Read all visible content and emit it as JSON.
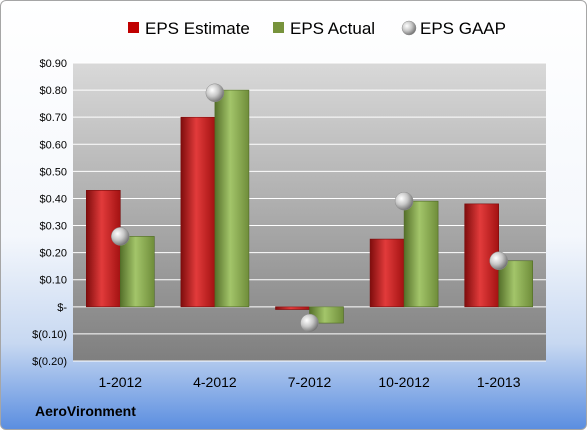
{
  "company": "AeroVironment",
  "colors": {
    "estimate": "#c00000",
    "actual": "#77933c",
    "gaap": "#a6a6a6"
  },
  "chart_data": {
    "type": "bar",
    "categories": [
      "1-2012",
      "4-2012",
      "7-2012",
      "10-2012",
      "1-2013"
    ],
    "series": [
      {
        "name": "EPS Estimate",
        "values": [
          0.43,
          0.7,
          -0.01,
          0.25,
          0.38
        ]
      },
      {
        "name": "EPS Actual",
        "values": [
          0.26,
          0.8,
          -0.06,
          0.39,
          0.17
        ]
      },
      {
        "name": "EPS GAAP",
        "values": [
          0.26,
          0.79,
          -0.06,
          0.39,
          0.17
        ],
        "marker": "sphere"
      }
    ],
    "ylim": [
      -0.2,
      0.9
    ],
    "yticks": [
      -0.2,
      -0.1,
      0,
      0.1,
      0.2,
      0.3,
      0.4,
      0.5,
      0.6,
      0.7,
      0.8,
      0.9
    ],
    "ytick_labels": [
      "$(0.20)",
      "$(0.10)",
      "$-",
      "$0.10",
      "$0.20",
      "$0.30",
      "$0.40",
      "$0.50",
      "$0.60",
      "$0.70",
      "$0.80",
      "$0.90"
    ],
    "grid": true,
    "legend": "top"
  }
}
